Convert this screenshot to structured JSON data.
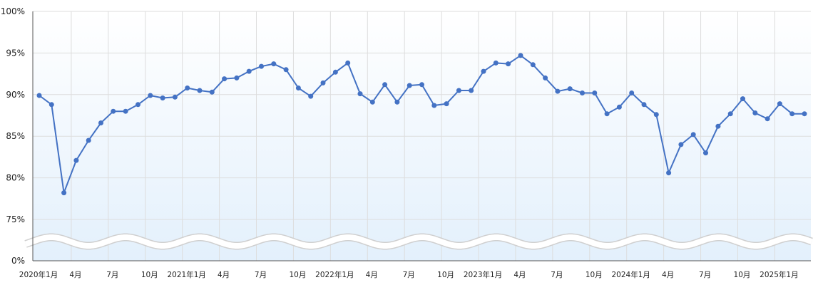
{
  "chart_data": {
    "type": "line",
    "title": "",
    "xlabel": "",
    "ylabel": "",
    "y_axis_break": true,
    "ylim_visible": [
      72,
      100
    ],
    "y_ticks": [
      {
        "value": 0,
        "label": "0%"
      },
      {
        "value": 75,
        "label": "75%"
      },
      {
        "value": 80,
        "label": "80%"
      },
      {
        "value": 85,
        "label": "85%"
      },
      {
        "value": 90,
        "label": "90%"
      },
      {
        "value": 95,
        "label": "95%"
      },
      {
        "value": 100,
        "label": "100%"
      }
    ],
    "x_ticks": [
      "2020年1月",
      "4月",
      "7月",
      "10月",
      "2021年1月",
      "4月",
      "7月",
      "10月",
      "2022年1月",
      "4月",
      "7月",
      "10月",
      "2023年1月",
      "4月",
      "7月",
      "10月",
      "2024年1月",
      "4月",
      "7月",
      "10月",
      "2025年1月"
    ],
    "grid": true,
    "colors": {
      "line": "#4472C4",
      "point": "#4472C4",
      "grid": "#dddddd",
      "fill_top": "#ffffff",
      "fill_bottom": "#e3f0fc"
    },
    "series": [
      {
        "values": [
          89.9,
          88.8,
          78.2,
          82.1,
          84.5,
          86.6,
          88.0,
          88.0,
          88.8,
          89.9,
          89.6,
          89.7,
          90.8,
          90.5,
          90.3,
          91.9,
          92.0,
          92.8,
          93.4,
          93.7,
          93.0,
          90.8,
          89.8,
          91.4,
          92.7,
          93.8,
          90.1,
          89.1,
          91.2,
          89.1,
          91.1,
          91.2,
          88.7,
          88.9,
          90.5,
          90.5,
          92.8,
          93.8,
          93.7,
          94.7,
          93.6,
          92.0,
          90.4,
          90.7,
          90.2,
          90.2,
          87.7,
          88.5,
          90.2,
          88.8,
          87.6,
          80.6,
          84.0,
          85.2,
          83.0,
          86.2,
          87.7,
          89.5,
          87.8,
          87.1,
          88.9,
          87.7,
          87.7
        ]
      }
    ]
  }
}
